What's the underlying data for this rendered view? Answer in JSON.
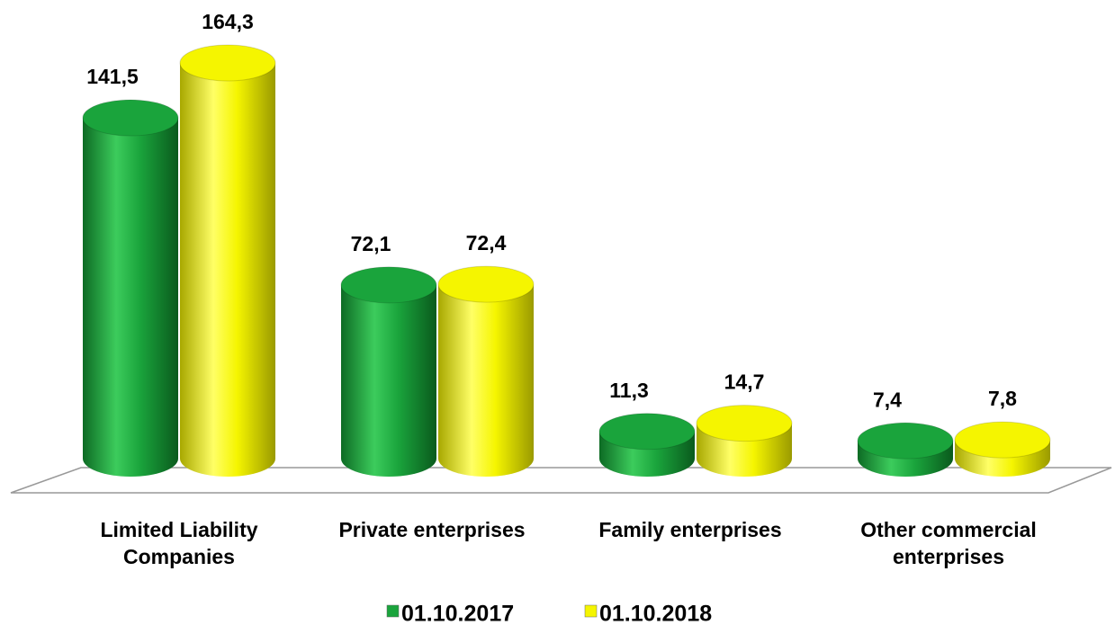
{
  "chart_data": {
    "type": "bar",
    "categories": [
      "Limited Liability Companies",
      "Private enterprises",
      "Family enterprises",
      "Other commercial enterprises"
    ],
    "series": [
      {
        "name": "01.10.2017",
        "color": "#1aa43c",
        "values": [
          141.5,
          72.1,
          11.3,
          7.4
        ],
        "value_labels": [
          "141,5",
          "72,1",
          "11,3",
          "7,4"
        ]
      },
      {
        "name": "01.10.2018",
        "color": "#f5f500",
        "values": [
          164.3,
          72.4,
          14.7,
          7.8
        ],
        "value_labels": [
          "164,3",
          "72,4",
          "14,7",
          "7,8"
        ]
      }
    ]
  }
}
